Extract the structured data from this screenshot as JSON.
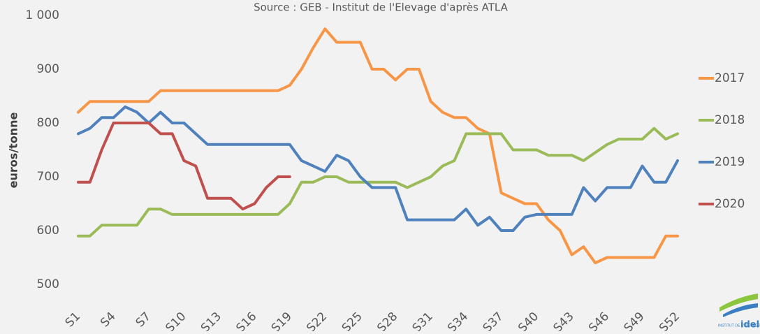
{
  "chart_data": {
    "type": "line",
    "subtitle": "Source : GEB - Institut de l'Elevage d'après ATLA",
    "y_label": "euros/tonne",
    "categories": [
      "S1",
      null,
      null,
      "S4",
      null,
      null,
      "S7",
      null,
      null,
      "S10",
      null,
      null,
      "S13",
      null,
      null,
      "S16",
      null,
      null,
      "S19",
      null,
      null,
      "S22",
      null,
      null,
      "S25",
      null,
      null,
      "S28",
      null,
      null,
      "S31",
      null,
      null,
      "S34",
      null,
      null,
      "S37",
      null,
      null,
      "S40",
      null,
      null,
      "S43",
      null,
      null,
      "S46",
      null,
      null,
      "S49",
      null,
      null,
      "S52"
    ],
    "ylim": [
      500,
      1000
    ],
    "yticks": [
      500,
      600,
      700,
      800,
      900,
      {
        "value": 1000,
        "label": "1 000"
      }
    ],
    "grid": false,
    "legend": "right",
    "series": [
      {
        "name": "2017",
        "color": "#f79646",
        "values": [
          820,
          840,
          840,
          840,
          840,
          840,
          840,
          860,
          860,
          860,
          860,
          860,
          860,
          860,
          860,
          860,
          860,
          860,
          870,
          900,
          940,
          975,
          950,
          950,
          950,
          900,
          900,
          880,
          900,
          900,
          840,
          820,
          810,
          810,
          790,
          780,
          670,
          660,
          650,
          650,
          620,
          600,
          555,
          570,
          540,
          550,
          550,
          550,
          550,
          550,
          590,
          590
        ]
      },
      {
        "name": "2018",
        "color": "#9bbb59",
        "values": [
          590,
          590,
          610,
          610,
          610,
          610,
          640,
          640,
          630,
          630,
          630,
          630,
          630,
          630,
          630,
          630,
          630,
          630,
          650,
          690,
          690,
          700,
          700,
          690,
          690,
          690,
          690,
          690,
          680,
          690,
          700,
          720,
          730,
          780,
          780,
          780,
          780,
          750,
          750,
          750,
          740,
          740,
          740,
          730,
          745,
          760,
          770,
          770,
          770,
          790,
          770,
          780
        ]
      },
      {
        "name": "2019",
        "color": "#4f81bd",
        "values": [
          780,
          790,
          810,
          810,
          830,
          820,
          800,
          820,
          800,
          800,
          780,
          760,
          760,
          760,
          760,
          760,
          760,
          760,
          760,
          730,
          720,
          710,
          740,
          730,
          700,
          680,
          680,
          680,
          620,
          620,
          620,
          620,
          620,
          640,
          610,
          625,
          600,
          600,
          625,
          630,
          630,
          630,
          630,
          680,
          655,
          680,
          680,
          680,
          720,
          690,
          690,
          730
        ]
      },
      {
        "name": "2020",
        "color": "#c0504d",
        "values": [
          690,
          690,
          750,
          800,
          800,
          800,
          800,
          780,
          780,
          730,
          720,
          660,
          660,
          660,
          640,
          650,
          680,
          700,
          700,
          null,
          null,
          null,
          null,
          null,
          null,
          null,
          null,
          null,
          null,
          null,
          null,
          null,
          null,
          null,
          null,
          null,
          null,
          null,
          null,
          null,
          null,
          null,
          null,
          null,
          null,
          null,
          null,
          null,
          null,
          null,
          null,
          null
        ]
      }
    ]
  },
  "logo": {
    "caption": "INSTITUT DE L'ELEVAGE",
    "name": "idele"
  }
}
